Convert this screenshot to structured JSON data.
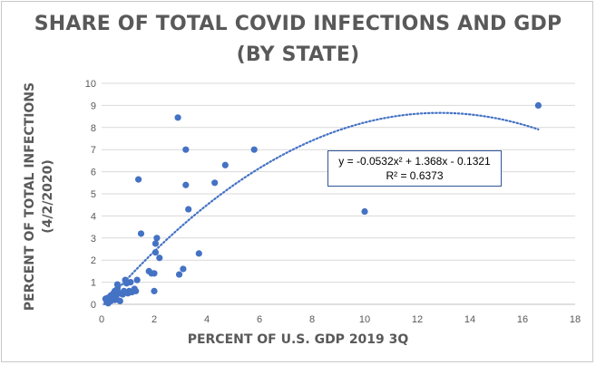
{
  "chart_data": {
    "type": "scatter",
    "title_line1": "SHARE OF TOTAL COVID INFECTIONS AND GDP",
    "title_line2": "(BY STATE)",
    "xlabel": "PERCENT OF U.S. GDP 2019 3Q",
    "ylabel_line1": "PERCENT OF TOTAL INFECTIONS",
    "ylabel_line2": "(4/2/2020)",
    "xlim": [
      0,
      18
    ],
    "ylim": [
      0,
      10
    ],
    "x_ticks": [
      0,
      2,
      4,
      6,
      8,
      10,
      12,
      14,
      16,
      18
    ],
    "y_ticks": [
      0,
      1,
      2,
      3,
      4,
      5,
      6,
      7,
      8,
      9,
      10
    ],
    "grid": "horizontal",
    "marker_color": "#4472c4",
    "trendline_color": "#4472c4",
    "trendline": {
      "type": "polynomial",
      "coefficients": [
        -0.0532,
        1.368,
        -0.1321
      ],
      "equation": "y = -0.0532x² + 1.368x  - 0.1321",
      "r_squared": "R² = 0.6373"
    },
    "points": [
      [
        16.6,
        9.0
      ],
      [
        10.0,
        4.2
      ],
      [
        5.8,
        7.0
      ],
      [
        4.7,
        6.3
      ],
      [
        4.3,
        5.5
      ],
      [
        3.7,
        2.3
      ],
      [
        3.2,
        7.0
      ],
      [
        3.2,
        5.4
      ],
      [
        3.3,
        4.3
      ],
      [
        2.9,
        8.45
      ],
      [
        3.1,
        1.6
      ],
      [
        2.95,
        1.35
      ],
      [
        2.1,
        3.0
      ],
      [
        2.05,
        2.75
      ],
      [
        2.2,
        2.1
      ],
      [
        2.05,
        2.35
      ],
      [
        2.0,
        1.4
      ],
      [
        2.0,
        0.6
      ],
      [
        1.5,
        3.2
      ],
      [
        1.4,
        5.65
      ],
      [
        1.8,
        1.5
      ],
      [
        1.9,
        1.4
      ],
      [
        1.35,
        1.1
      ],
      [
        1.3,
        0.6
      ],
      [
        1.1,
        1.0
      ],
      [
        0.95,
        0.95
      ],
      [
        1.0,
        0.5
      ],
      [
        1.05,
        0.6
      ],
      [
        0.9,
        1.1
      ],
      [
        0.8,
        0.45
      ],
      [
        0.7,
        0.5
      ],
      [
        0.6,
        0.9
      ],
      [
        0.6,
        0.5
      ],
      [
        0.55,
        0.3
      ],
      [
        0.5,
        0.6
      ],
      [
        0.45,
        0.5
      ],
      [
        0.4,
        0.3
      ],
      [
        0.35,
        0.4
      ],
      [
        0.3,
        0.2
      ],
      [
        0.25,
        0.3
      ],
      [
        0.2,
        0.1
      ],
      [
        0.15,
        0.25
      ],
      [
        0.5,
        0.2
      ],
      [
        0.7,
        0.15
      ],
      [
        1.25,
        0.7
      ],
      [
        1.15,
        0.55
      ],
      [
        0.85,
        0.6
      ],
      [
        0.35,
        0.15
      ],
      [
        0.25,
        0.05
      ],
      [
        0.6,
        0.7
      ]
    ]
  }
}
